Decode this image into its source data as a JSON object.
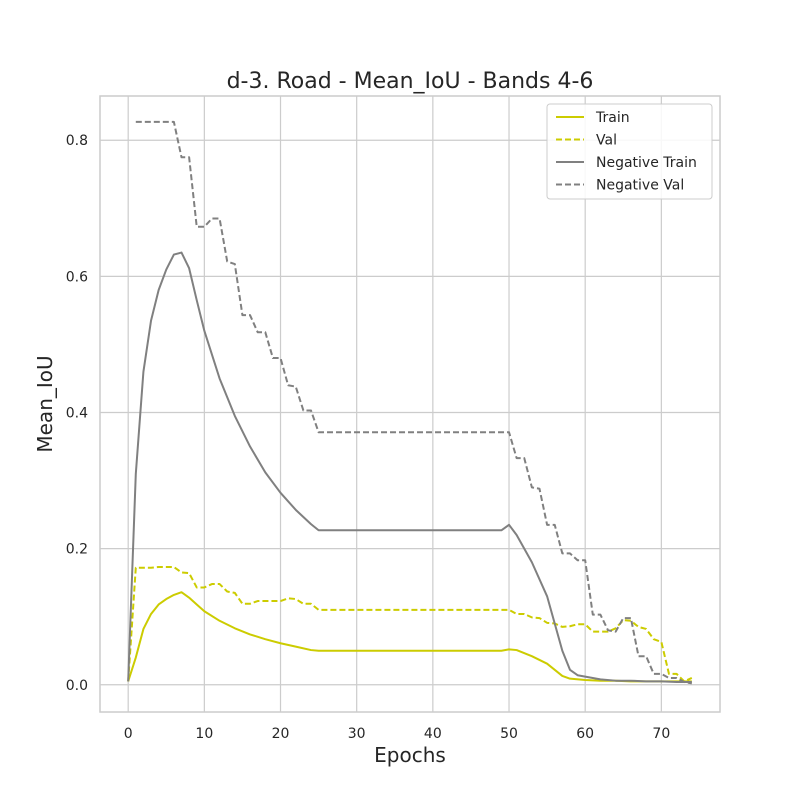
{
  "chart_data": {
    "type": "line",
    "title": "d-3. Road - Mean_IoU - Bands 4-6",
    "xlabel": "Epochs",
    "ylabel": "Mean_IoU",
    "xlim": [
      -3.7,
      77.7
    ],
    "ylim": [
      -0.04,
      0.865
    ],
    "xticks": [
      0,
      10,
      20,
      30,
      40,
      50,
      60,
      70
    ],
    "yticks": [
      0.0,
      0.2,
      0.4,
      0.6,
      0.8
    ],
    "xtick_labels": [
      "0",
      "10",
      "20",
      "30",
      "40",
      "50",
      "60",
      "70"
    ],
    "ytick_labels": [
      "0.0",
      "0.2",
      "0.4",
      "0.6",
      "0.8"
    ],
    "grid": true,
    "legend_position": "top-right",
    "series": [
      {
        "name": "Train",
        "color": "#cccc00",
        "style": "solid",
        "points": [
          [
            0,
            0.005
          ],
          [
            1,
            0.04
          ],
          [
            2,
            0.082
          ],
          [
            3,
            0.104
          ],
          [
            4,
            0.118
          ],
          [
            5,
            0.126
          ],
          [
            6,
            0.132
          ],
          [
            7,
            0.136
          ],
          [
            8,
            0.128
          ],
          [
            9,
            0.118
          ],
          [
            10,
            0.108
          ],
          [
            12,
            0.094
          ],
          [
            14,
            0.083
          ],
          [
            16,
            0.074
          ],
          [
            18,
            0.067
          ],
          [
            20,
            0.061
          ],
          [
            22,
            0.056
          ],
          [
            24,
            0.051
          ],
          [
            25,
            0.05
          ],
          [
            30,
            0.05
          ],
          [
            40,
            0.05
          ],
          [
            49,
            0.05
          ],
          [
            50,
            0.052
          ],
          [
            51,
            0.051
          ],
          [
            53,
            0.042
          ],
          [
            55,
            0.031
          ],
          [
            57,
            0.013
          ],
          [
            58,
            0.009
          ],
          [
            60,
            0.007
          ],
          [
            62,
            0.006
          ],
          [
            64,
            0.006
          ],
          [
            66,
            0.005
          ],
          [
            68,
            0.005
          ],
          [
            70,
            0.005
          ],
          [
            72,
            0.005
          ],
          [
            74,
            0.005
          ]
        ]
      },
      {
        "name": "Val",
        "color": "#cccc00",
        "style": "dashed",
        "points": [
          [
            0,
            0.005
          ],
          [
            1,
            0.172
          ],
          [
            3,
            0.172
          ],
          [
            4,
            0.173
          ],
          [
            6,
            0.173
          ],
          [
            7,
            0.165
          ],
          [
            8,
            0.164
          ],
          [
            9,
            0.143
          ],
          [
            10,
            0.143
          ],
          [
            11,
            0.148
          ],
          [
            12,
            0.148
          ],
          [
            13,
            0.137
          ],
          [
            14,
            0.135
          ],
          [
            15,
            0.119
          ],
          [
            16,
            0.119
          ],
          [
            17,
            0.123
          ],
          [
            20,
            0.123
          ],
          [
            21,
            0.127
          ],
          [
            22,
            0.126
          ],
          [
            23,
            0.119
          ],
          [
            24,
            0.119
          ],
          [
            25,
            0.11
          ],
          [
            30,
            0.11
          ],
          [
            40,
            0.11
          ],
          [
            50,
            0.11
          ],
          [
            51,
            0.104
          ],
          [
            52,
            0.104
          ],
          [
            53,
            0.099
          ],
          [
            54,
            0.098
          ],
          [
            55,
            0.091
          ],
          [
            56,
            0.09
          ],
          [
            57,
            0.085
          ],
          [
            58,
            0.086
          ],
          [
            59,
            0.089
          ],
          [
            60,
            0.089
          ],
          [
            61,
            0.078
          ],
          [
            63,
            0.078
          ],
          [
            64,
            0.083
          ],
          [
            65,
            0.095
          ],
          [
            66,
            0.094
          ],
          [
            67,
            0.085
          ],
          [
            68,
            0.082
          ],
          [
            69,
            0.067
          ],
          [
            70,
            0.063
          ],
          [
            71,
            0.016
          ],
          [
            72,
            0.016
          ],
          [
            73,
            0.005
          ],
          [
            74,
            0.01
          ]
        ]
      },
      {
        "name": "Negative Train",
        "color": "#808080",
        "style": "solid",
        "points": [
          [
            0,
            0.005
          ],
          [
            1,
            0.31
          ],
          [
            2,
            0.46
          ],
          [
            3,
            0.535
          ],
          [
            4,
            0.58
          ],
          [
            5,
            0.61
          ],
          [
            6,
            0.632
          ],
          [
            7,
            0.635
          ],
          [
            8,
            0.612
          ],
          [
            9,
            0.565
          ],
          [
            10,
            0.52
          ],
          [
            12,
            0.45
          ],
          [
            14,
            0.395
          ],
          [
            16,
            0.35
          ],
          [
            18,
            0.312
          ],
          [
            20,
            0.282
          ],
          [
            22,
            0.257
          ],
          [
            24,
            0.236
          ],
          [
            25,
            0.227
          ],
          [
            30,
            0.227
          ],
          [
            40,
            0.227
          ],
          [
            49,
            0.227
          ],
          [
            50,
            0.235
          ],
          [
            51,
            0.22
          ],
          [
            53,
            0.18
          ],
          [
            55,
            0.13
          ],
          [
            57,
            0.05
          ],
          [
            58,
            0.022
          ],
          [
            59,
            0.014
          ],
          [
            60,
            0.012
          ],
          [
            62,
            0.008
          ],
          [
            64,
            0.006
          ],
          [
            66,
            0.006
          ],
          [
            68,
            0.005
          ],
          [
            70,
            0.005
          ],
          [
            72,
            0.004
          ],
          [
            74,
            0.004
          ]
        ]
      },
      {
        "name": "Negative Val",
        "color": "#808080",
        "style": "dashed",
        "points": [
          [
            1,
            0.827
          ],
          [
            6,
            0.827
          ],
          [
            7,
            0.775
          ],
          [
            8,
            0.775
          ],
          [
            9,
            0.673
          ],
          [
            10,
            0.673
          ],
          [
            11,
            0.685
          ],
          [
            12,
            0.685
          ],
          [
            13,
            0.622
          ],
          [
            14,
            0.618
          ],
          [
            15,
            0.543
          ],
          [
            16,
            0.543
          ],
          [
            17,
            0.518
          ],
          [
            18,
            0.518
          ],
          [
            19,
            0.48
          ],
          [
            20,
            0.48
          ],
          [
            21,
            0.44
          ],
          [
            22,
            0.438
          ],
          [
            23,
            0.403
          ],
          [
            24,
            0.403
          ],
          [
            25,
            0.371
          ],
          [
            30,
            0.371
          ],
          [
            40,
            0.371
          ],
          [
            50,
            0.371
          ],
          [
            51,
            0.333
          ],
          [
            52,
            0.333
          ],
          [
            53,
            0.29
          ],
          [
            54,
            0.288
          ],
          [
            55,
            0.235
          ],
          [
            56,
            0.235
          ],
          [
            57,
            0.193
          ],
          [
            58,
            0.193
          ],
          [
            59,
            0.183
          ],
          [
            60,
            0.183
          ],
          [
            61,
            0.103
          ],
          [
            62,
            0.103
          ],
          [
            63,
            0.08
          ],
          [
            64,
            0.078
          ],
          [
            65,
            0.098
          ],
          [
            66,
            0.098
          ],
          [
            67,
            0.042
          ],
          [
            68,
            0.042
          ],
          [
            69,
            0.016
          ],
          [
            70,
            0.016
          ],
          [
            71,
            0.01
          ],
          [
            72,
            0.01
          ],
          [
            73,
            0.004
          ],
          [
            74,
            0.002
          ]
        ]
      }
    ]
  }
}
